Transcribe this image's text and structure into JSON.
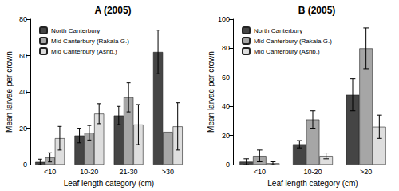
{
  "chart_data": [
    {
      "type": "bar",
      "title": "A (2005)",
      "x_label": "Leaf length category (cm)",
      "y_label": "Mean larvae per crown",
      "categories": [
        "<10",
        "10-20",
        "21-30",
        ">30"
      ],
      "series": [
        {
          "name": "North Canterbury",
          "color": "#454545",
          "values": [
            1.5,
            16,
            27,
            62
          ],
          "errors": [
            1.5,
            4,
            5,
            12
          ]
        },
        {
          "name": "Mid Canterbury (Rakaia G.)",
          "color": "#a6a6a6",
          "values": [
            4,
            17.5,
            37,
            18
          ],
          "errors": [
            2.5,
            4,
            8,
            null
          ]
        },
        {
          "name": "Mid Canterbury (Ashb.)",
          "color": "#dedede",
          "values": [
            14.5,
            28,
            22,
            21
          ],
          "errors": [
            6.5,
            5.5,
            11,
            13
          ]
        }
      ],
      "ylim": [
        0,
        80
      ],
      "yticks": [
        0,
        20,
        40,
        60,
        80
      ],
      "grid": false,
      "legend": "upper left"
    },
    {
      "type": "bar",
      "title": "B (2005)",
      "x_label": "Leaf length category (cm)",
      "y_label": "Mean larvae per crown",
      "categories": [
        "<10",
        "10-20",
        ">20"
      ],
      "series": [
        {
          "name": "North Canterbury",
          "color": "#454545",
          "values": [
            2,
            14,
            48
          ],
          "errors": [
            2,
            2.5,
            11
          ]
        },
        {
          "name": "Mid Canterbury (Rakaia G.)",
          "color": "#a6a6a6",
          "values": [
            6,
            31,
            80
          ],
          "errors": [
            4,
            6,
            14
          ]
        },
        {
          "name": "Mid Canterbury (Ashb.)",
          "color": "#dedede",
          "values": [
            1,
            6,
            26
          ],
          "errors": [
            1,
            2,
            8
          ]
        }
      ],
      "ylim": [
        0,
        100
      ],
      "yticks": [
        0,
        20,
        40,
        60,
        80,
        100
      ],
      "grid": false,
      "legend": "upper left"
    }
  ]
}
